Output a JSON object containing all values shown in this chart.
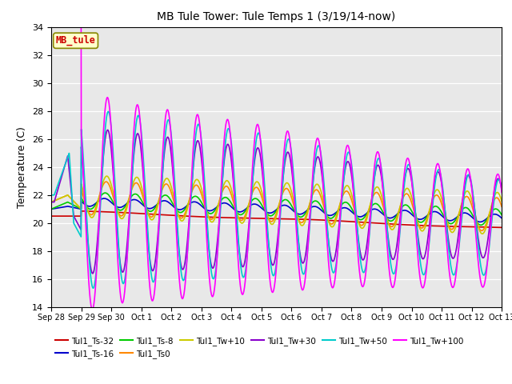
{
  "title": "MB Tule Tower: Tule Temps 1 (3/19/14-now)",
  "ylabel": "Temperature (C)",
  "ylim": [
    14,
    34
  ],
  "yticks": [
    14,
    16,
    18,
    20,
    22,
    24,
    26,
    28,
    30,
    32,
    34
  ],
  "background_color": "#e8e8e8",
  "series_order": [
    "Tul1_Ts-32",
    "Tul1_Ts-16",
    "Tul1_Ts-8",
    "Tul1_Ts0",
    "Tul1_Tw+10",
    "Tul1_Tw+30",
    "Tul1_Tw+50",
    "Tul1_Tw+100"
  ],
  "series_colors": {
    "Tul1_Ts-32": "#cc0000",
    "Tul1_Ts-16": "#0000cc",
    "Tul1_Ts-8": "#00cc00",
    "Tul1_Ts0": "#ff8800",
    "Tul1_Tw+10": "#cccc00",
    "Tul1_Tw+30": "#8800cc",
    "Tul1_Tw+50": "#00cccc",
    "Tul1_Tw+100": "#ff00ff"
  },
  "x_tick_labels": [
    "Sep 28",
    "Sep 29",
    "Sep 30",
    "Oct 1",
    "Oct 2",
    "Oct 3",
    "Oct 4",
    "Oct 5",
    "Oct 6",
    "Oct 7",
    "Oct 8",
    "Oct 9",
    "Oct 10",
    "Oct 11",
    "Oct 12",
    "Oct 13"
  ],
  "n_days": 15,
  "pts_per_day": 144,
  "mb_tule_label": "MB_tule",
  "mb_tule_bg": "#ffffcc",
  "mb_tule_border": "#888800",
  "mb_tule_text_color": "#cc0000",
  "legend_row1": [
    "Tul1_Ts-32",
    "Tul1_Ts-16",
    "Tul1_Ts-8",
    "Tul1_Ts0",
    "Tul1_Tw+10",
    "Tul1_Tw+30"
  ],
  "legend_row2": [
    "Tul1_Tw+50",
    "Tul1_Tw+100"
  ],
  "lw": 1.2
}
